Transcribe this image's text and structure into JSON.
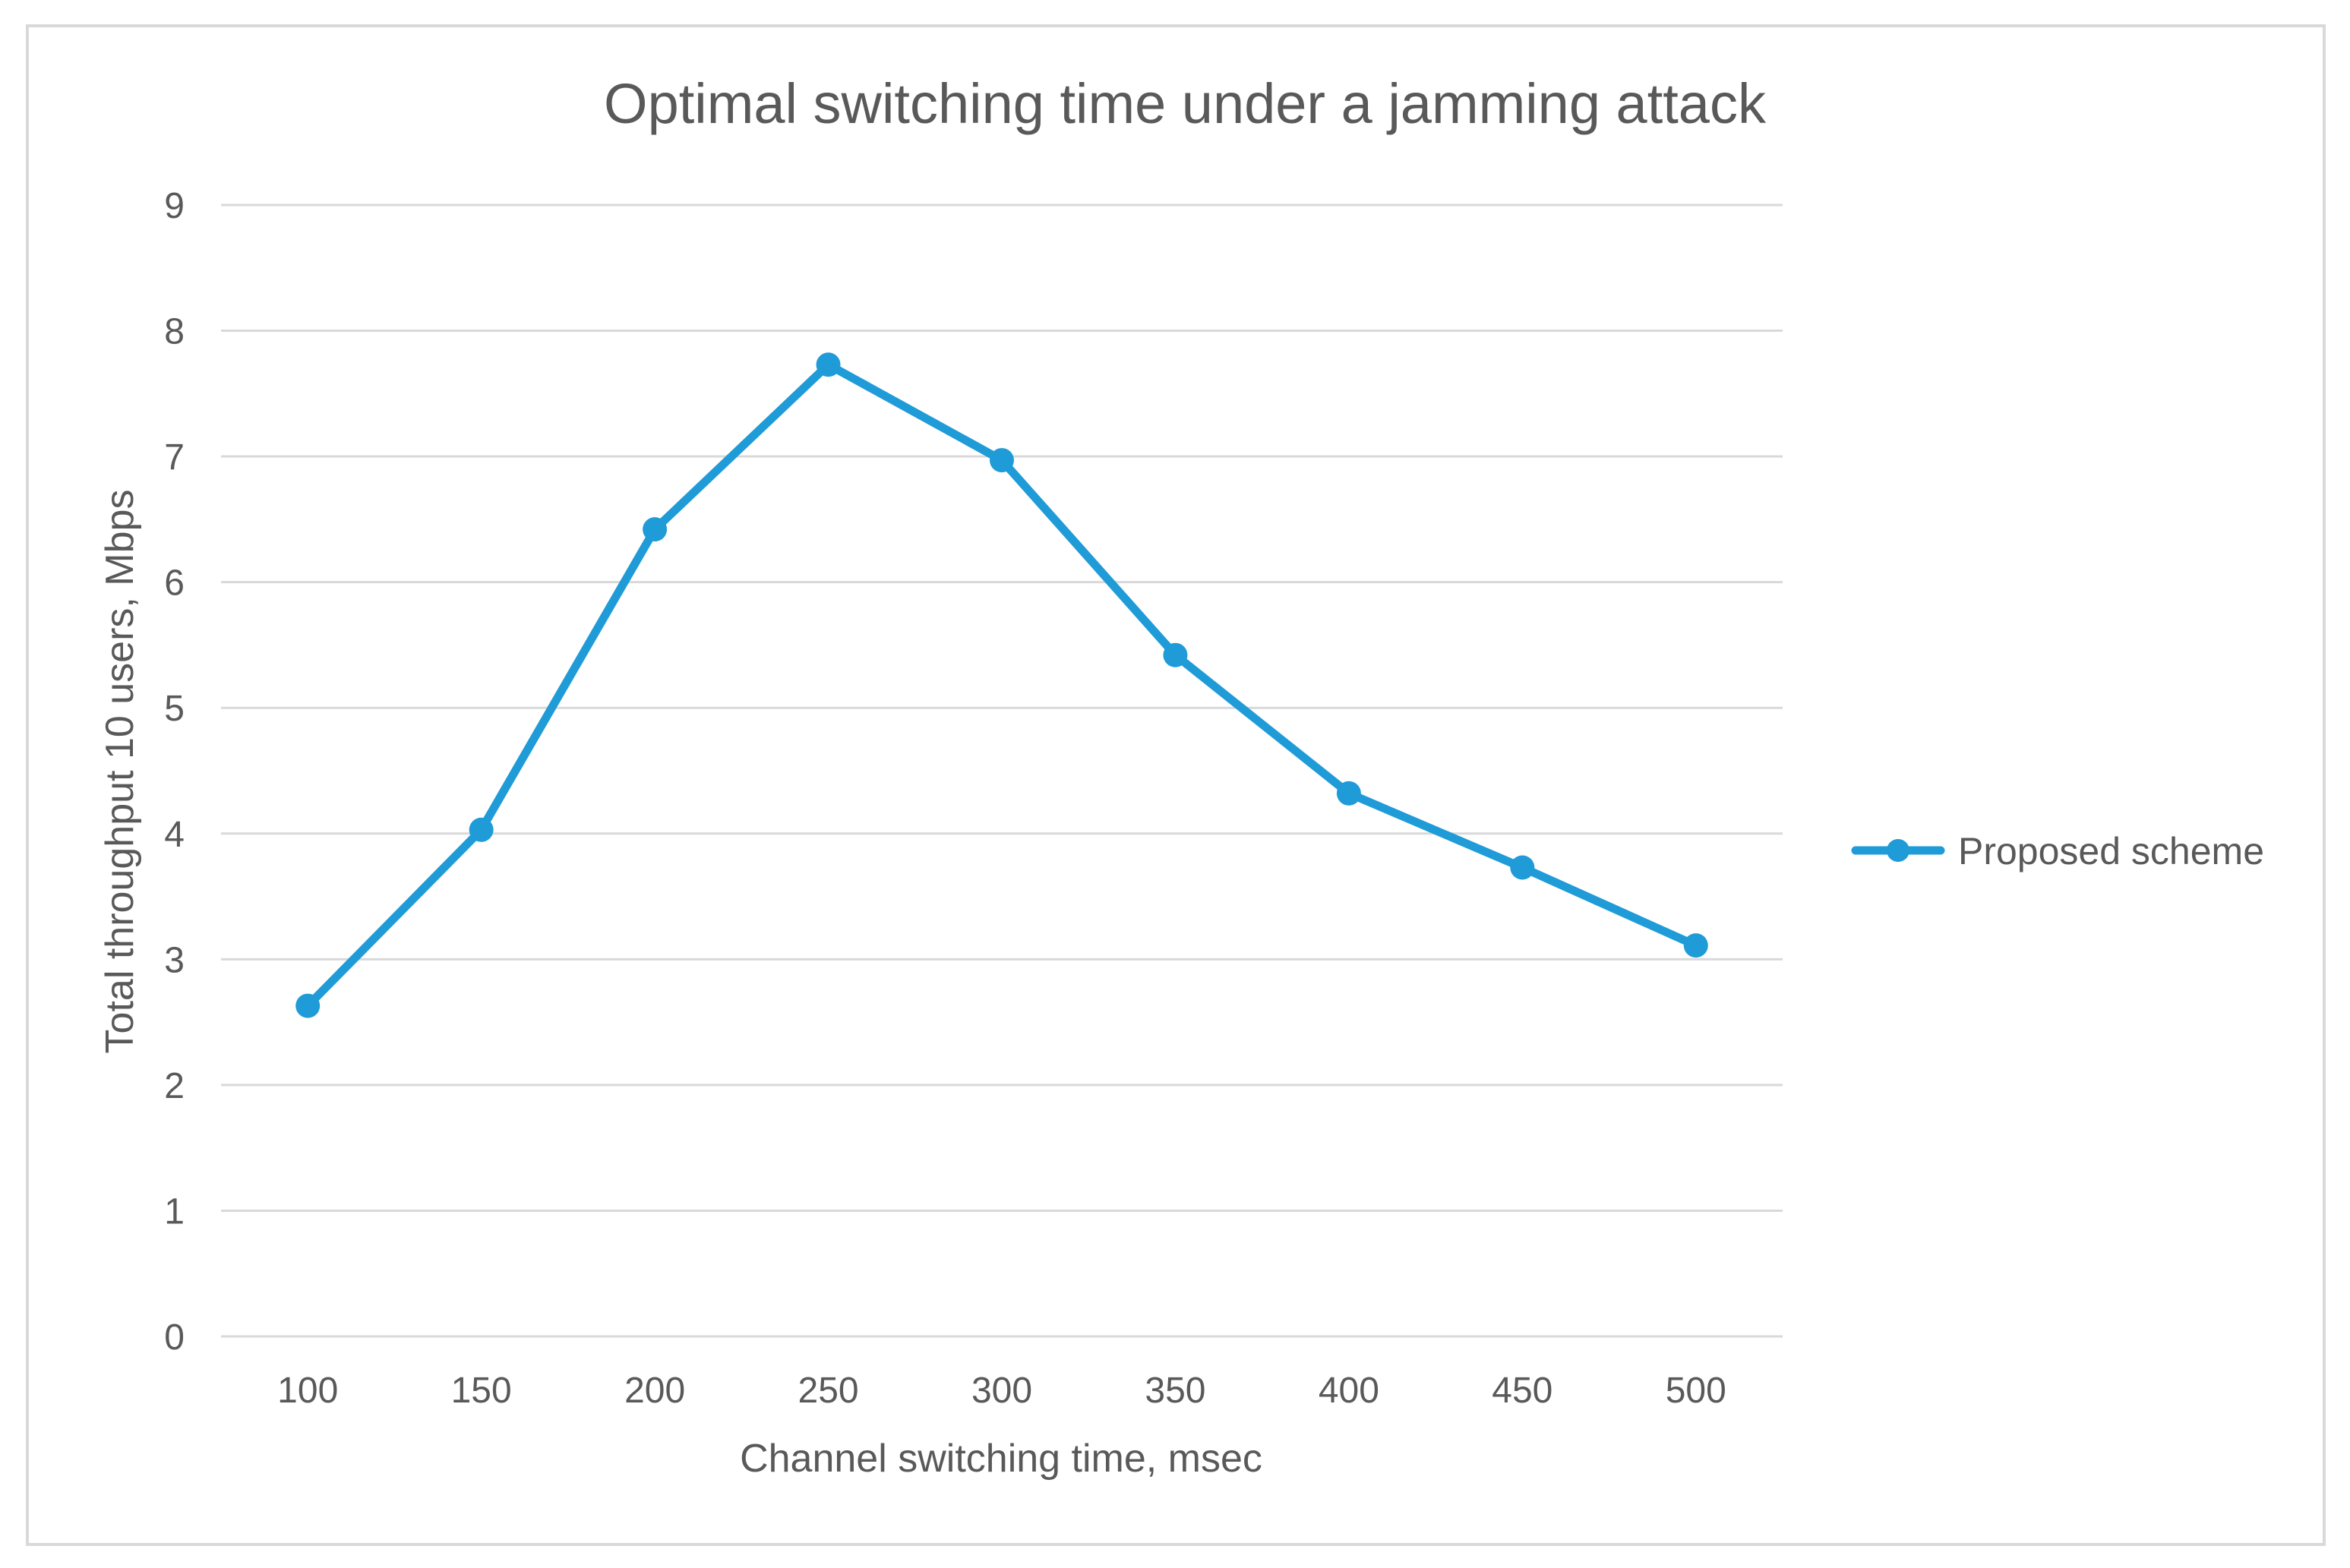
{
  "colors": {
    "series": "#1F9BD7",
    "grid": "#D9D9D9",
    "text": "#595959",
    "frame": "#D9D9D9",
    "background": "#FFFFFF"
  },
  "chart_data": {
    "type": "line",
    "title": "Optimal switching time under a jamming attack",
    "xlabel": "Channel switching time, msec",
    "ylabel": "Total throughput 10 users, Mbps",
    "categories": [
      "100",
      "150",
      "200",
      "250",
      "300",
      "350",
      "400",
      "450",
      "500"
    ],
    "series": [
      {
        "name": "Proposed scheme",
        "values": [
          2.63,
          4.03,
          6.42,
          7.73,
          6.97,
          5.42,
          4.32,
          3.73,
          3.11
        ],
        "marker": "circle"
      }
    ],
    "ylim": [
      0,
      9
    ],
    "yticks": [
      0,
      1,
      2,
      3,
      4,
      5,
      6,
      7,
      8,
      9
    ],
    "grid": true,
    "legend_position": "right"
  }
}
